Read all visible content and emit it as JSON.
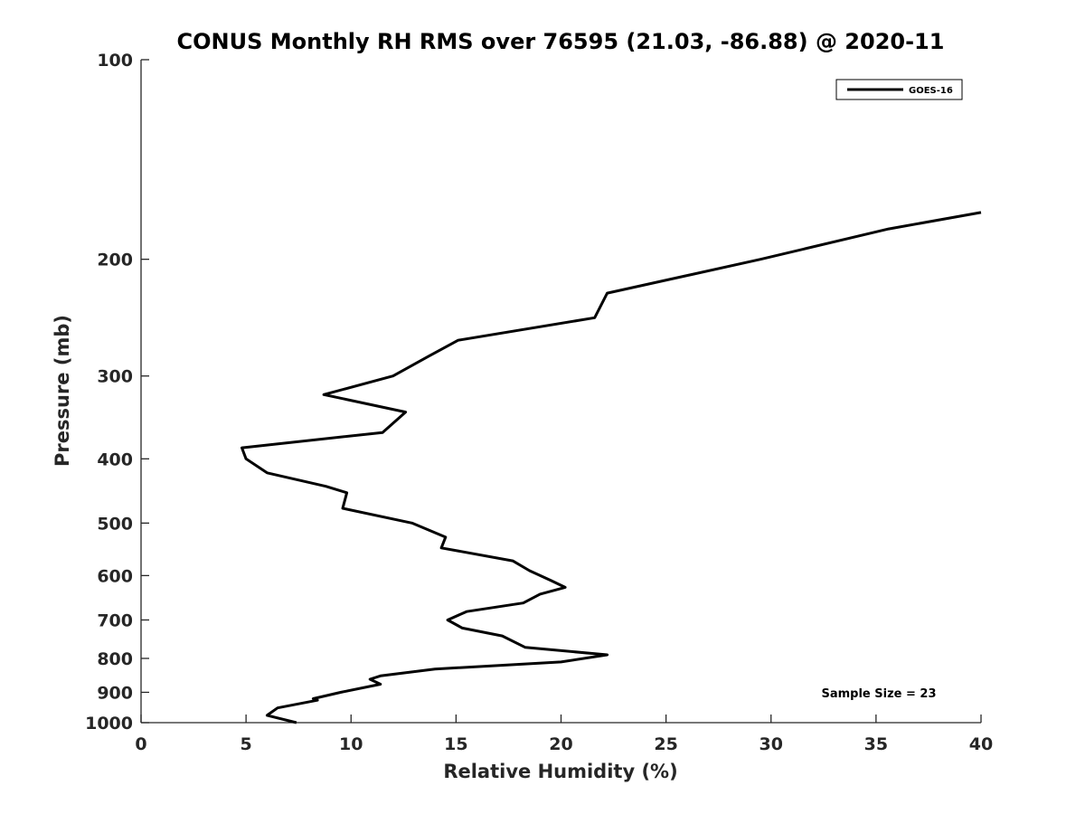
{
  "chart_data": {
    "type": "line",
    "title": "CONUS Monthly RH RMS over 76595 (21.03, -86.88) @ 2020-11",
    "xlabel": "Relative Humidity (%)",
    "ylabel": "Pressure (mb)",
    "xlim": [
      0,
      40
    ],
    "ylim": [
      100,
      1000
    ],
    "yscale": "log",
    "y_reversed": true,
    "x_ticks": [
      "0",
      "5",
      "10",
      "15",
      "20",
      "25",
      "30",
      "35",
      "40"
    ],
    "y_ticks": [
      "100",
      "200",
      "300",
      "400",
      "500",
      "600",
      "700",
      "800",
      "900",
      "1000"
    ],
    "grid": false,
    "legend_position": "top-right",
    "line_color": "#000000",
    "series": [
      {
        "name": "GOES-16",
        "x": [
          7.4,
          6.0,
          6.5,
          8.4,
          8.2,
          9.5,
          11.4,
          10.9,
          11.4,
          14.0,
          20.0,
          22.2,
          18.3,
          17.2,
          15.3,
          14.6,
          15.5,
          18.2,
          19.0,
          20.2,
          19.5,
          18.5,
          17.7,
          14.3,
          14.5,
          12.9,
          9.6,
          9.8,
          8.8,
          6.0,
          5.0,
          4.8,
          11.5,
          12.6,
          8.7,
          12.0,
          13.7,
          15.1,
          21.6,
          22.2,
          29.5,
          35.6,
          40.0
        ],
        "y": [
          1000,
          975,
          950,
          925,
          920,
          900,
          875,
          860,
          850,
          830,
          810,
          790,
          770,
          740,
          720,
          700,
          680,
          660,
          640,
          625,
          610,
          590,
          570,
          545,
          525,
          500,
          475,
          450,
          440,
          420,
          400,
          385,
          365,
          340,
          320,
          300,
          280,
          265,
          245,
          225,
          200,
          180,
          170
        ]
      }
    ],
    "annotations": [
      "Sample Size = 23"
    ]
  }
}
